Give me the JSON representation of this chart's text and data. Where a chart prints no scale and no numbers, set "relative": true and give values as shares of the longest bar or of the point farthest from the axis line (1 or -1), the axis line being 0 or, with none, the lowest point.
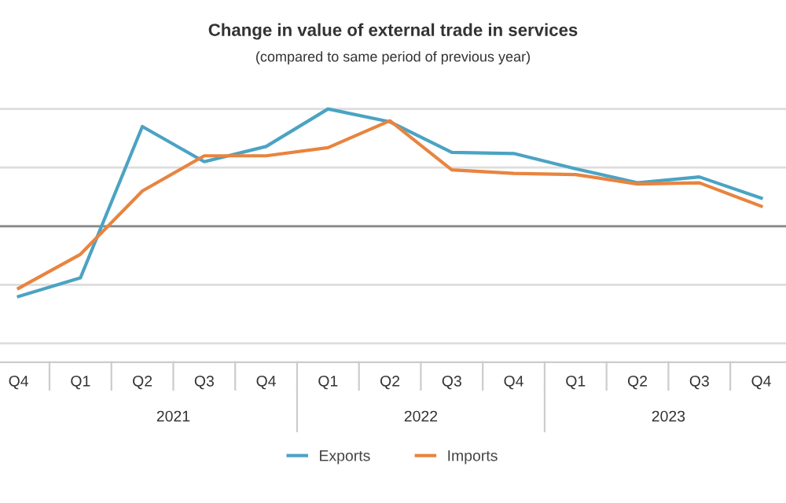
{
  "chart_data": {
    "type": "line",
    "title": "Change in value of external trade in services",
    "subtitle": "(compared to same period of previous year)",
    "categories": [
      "Q4",
      "Q1",
      "Q2",
      "Q3",
      "Q4",
      "Q1",
      "Q2",
      "Q3",
      "Q4",
      "Q1",
      "Q2",
      "Q3",
      "Q4"
    ],
    "annotations": [
      "2021",
      "2022",
      "2023"
    ],
    "relative": true,
    "grid": "y",
    "legend": "bottom",
    "marker": "none",
    "line_style": "solid",
    "series": [
      {
        "name": "Exports",
        "color": "#4ba3c3",
        "values": [
          -0.6,
          -0.44,
          0.85,
          0.55,
          0.68,
          1,
          0.89,
          0.63,
          0.62,
          0.49,
          0.37,
          0.42,
          0.24
        ]
      },
      {
        "name": "Imports",
        "color": "#e8843f",
        "values": [
          -0.53,
          -0.24,
          0.3,
          0.6,
          0.6,
          0.67,
          0.9,
          0.48,
          0.45,
          0.44,
          0.36,
          0.37,
          0.17
        ]
      }
    ]
  }
}
